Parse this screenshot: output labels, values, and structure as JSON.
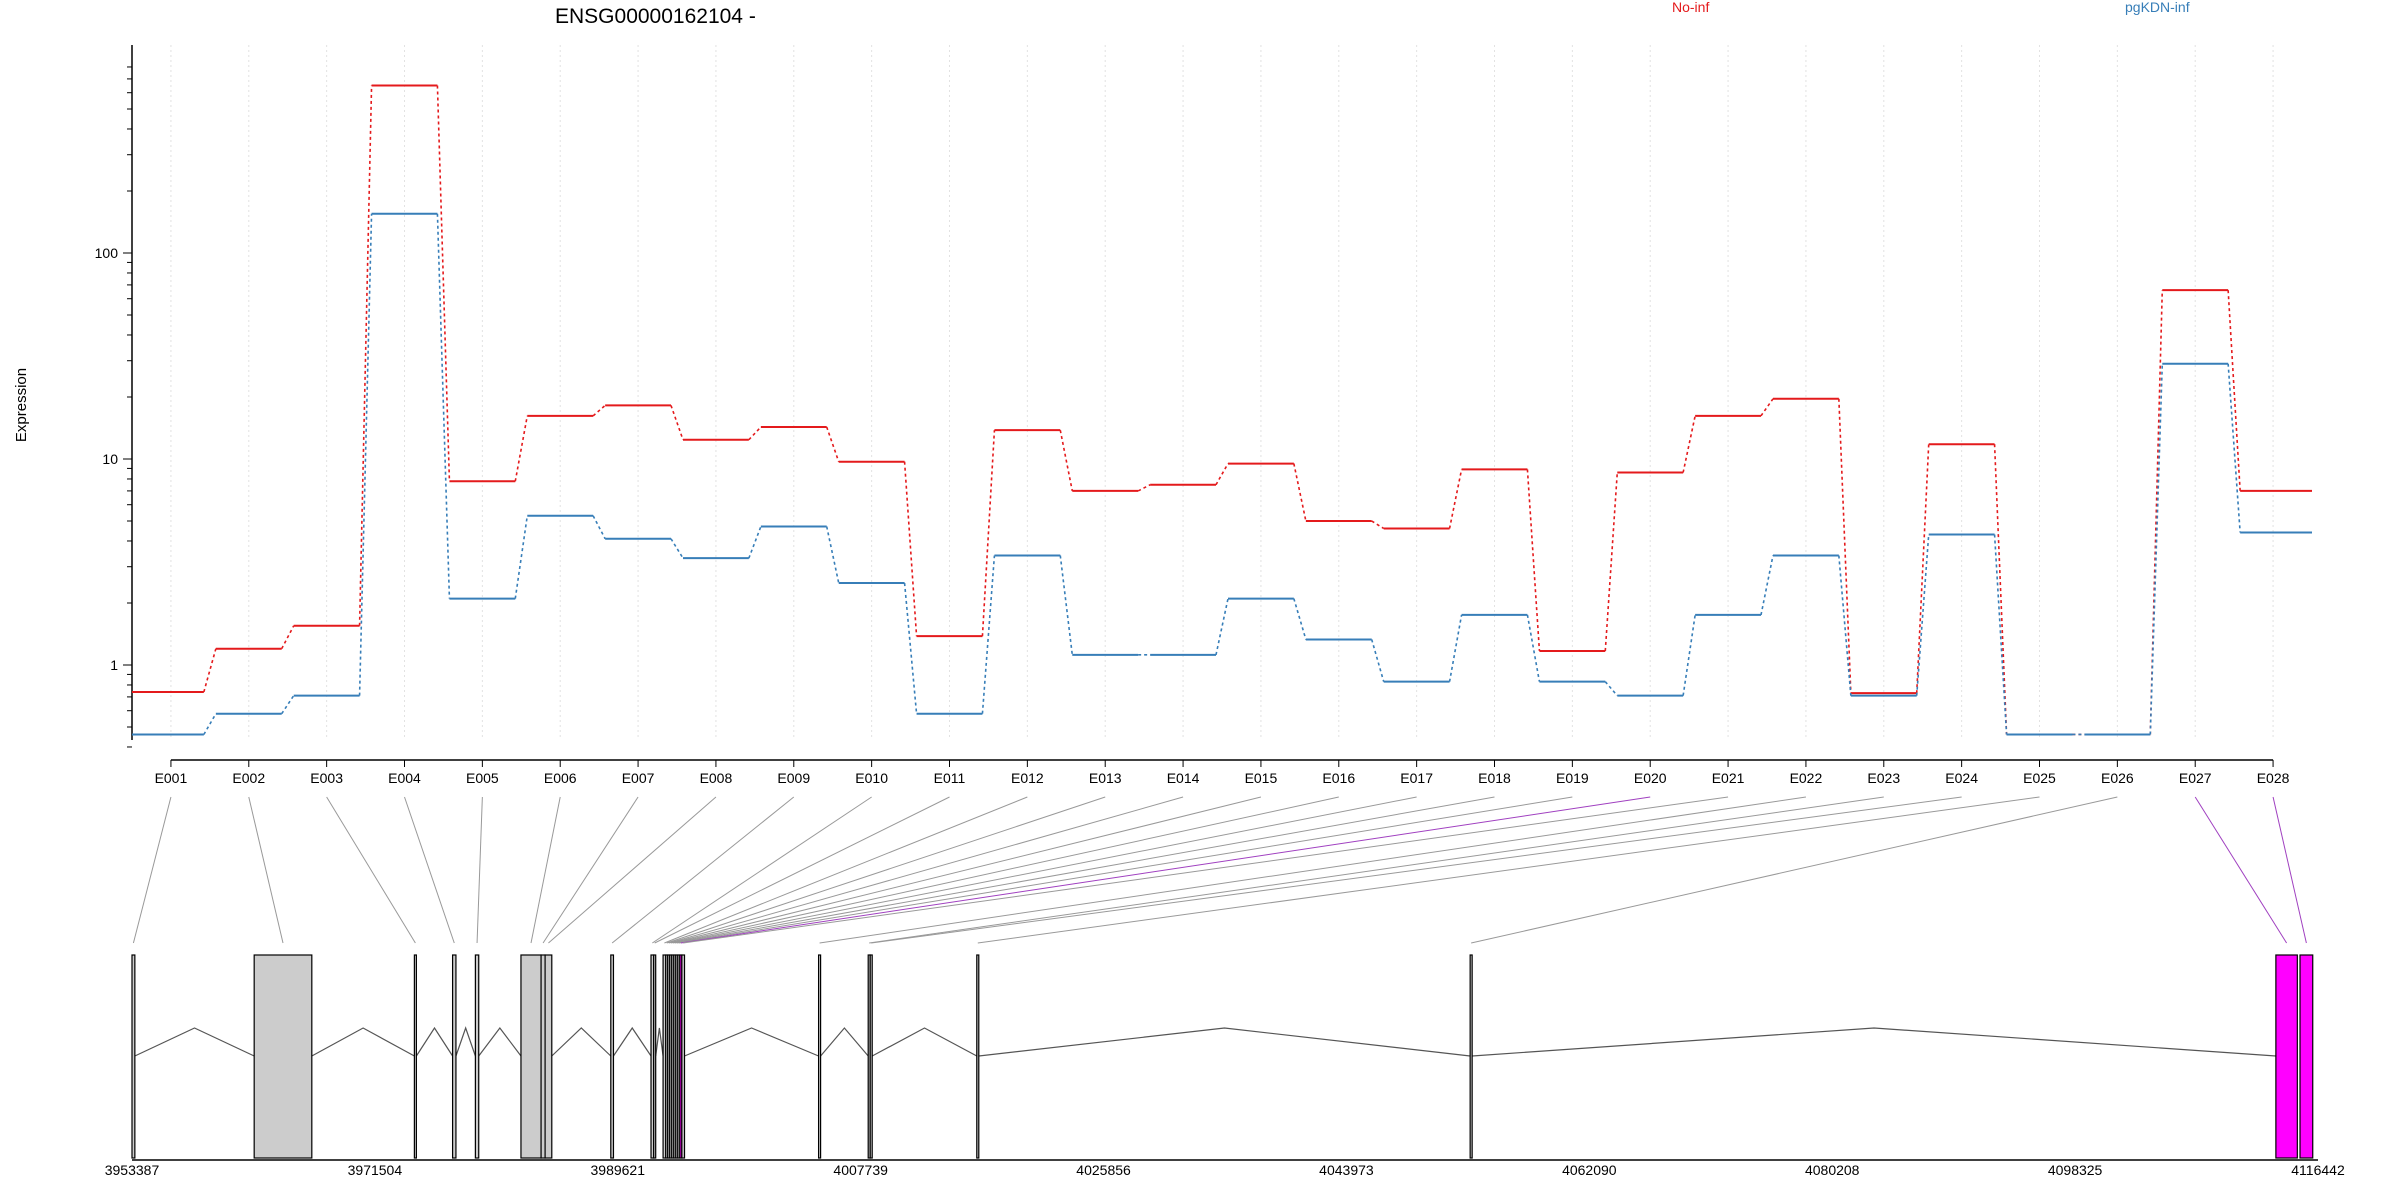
{
  "chart_data": {
    "type": "line",
    "title": "ENSG00000162104 -",
    "ylabel": "Expression",
    "xlabel": "",
    "y_scale": "log",
    "ylim": [
      0.4,
      800
    ],
    "y_ticks": [
      1,
      10,
      100
    ],
    "y_tick_labels": [
      "1",
      "10",
      "100"
    ],
    "grid": "vertical dotted lines at each exon",
    "legend_placement": "top",
    "categories": [
      "E001",
      "E002",
      "E003",
      "E004",
      "E005",
      "E006",
      "E007",
      "E008",
      "E009",
      "E010",
      "E011",
      "E012",
      "E013",
      "E014",
      "E015",
      "E016",
      "E017",
      "E018",
      "E019",
      "E020",
      "E021",
      "E022",
      "E023",
      "E024",
      "E025",
      "E026",
      "E027",
      "E028"
    ],
    "series": [
      {
        "name": "No-inf",
        "color": "#e41a1c",
        "values": [
          0.74,
          1.2,
          1.55,
          650,
          7.8,
          16.2,
          18.2,
          12.4,
          14.3,
          9.7,
          1.38,
          13.8,
          7.0,
          7.5,
          9.5,
          5.0,
          4.6,
          8.9,
          1.17,
          8.6,
          16.2,
          19.6,
          0.73,
          11.8,
          0.46,
          0.46,
          66,
          7.0
        ]
      },
      {
        "name": "pgKDN-inf",
        "color": "#377eb8",
        "values": [
          0.46,
          0.58,
          0.71,
          155,
          2.1,
          5.3,
          4.1,
          3.3,
          4.7,
          2.5,
          0.58,
          3.4,
          1.12,
          1.12,
          2.1,
          1.33,
          0.83,
          1.75,
          0.83,
          0.71,
          1.75,
          3.4,
          0.71,
          4.3,
          0.46,
          0.46,
          29,
          4.4
        ]
      }
    ],
    "genomic_axis": {
      "tick_labels": [
        "3953387",
        "3971504",
        "3989621",
        "4007739",
        "4025856",
        "4043973",
        "4062090",
        "4080208",
        "4098325",
        "4116442"
      ],
      "range": [
        3953387,
        4116442
      ]
    },
    "gene_model": {
      "exon_fill": "#cccccc",
      "highlight_fill": "#ff00ff",
      "highlight_exons": [
        "E020",
        "E027",
        "E028"
      ],
      "exons": [
        {
          "id": "E001",
          "start": 3953387,
          "end": 3953600
        },
        {
          "id": "E002",
          "start": 3962500,
          "end": 3966800
        },
        {
          "id": "E003",
          "start": 3974450,
          "end": 3974550
        },
        {
          "id": "E004",
          "start": 3977300,
          "end": 3977550
        },
        {
          "id": "E005",
          "start": 3979000,
          "end": 3979250
        },
        {
          "id": "E006",
          "start": 3982400,
          "end": 3983900
        },
        {
          "id": "E007",
          "start": 3983900,
          "end": 3984200
        },
        {
          "id": "E008",
          "start": 3984200,
          "end": 3984700
        },
        {
          "id": "E009",
          "start": 3989100,
          "end": 3989300
        },
        {
          "id": "E010",
          "start": 3992100,
          "end": 3992300
        },
        {
          "id": "E011",
          "start": 3992300,
          "end": 3992450
        },
        {
          "id": "E012",
          "start": 3993000,
          "end": 3993200
        },
        {
          "id": "E013",
          "start": 3993200,
          "end": 3993350
        },
        {
          "id": "E014",
          "start": 3993350,
          "end": 3993500
        },
        {
          "id": "E015",
          "start": 3993500,
          "end": 3993650
        },
        {
          "id": "E016",
          "start": 3993650,
          "end": 3993800
        },
        {
          "id": "E017",
          "start": 3993800,
          "end": 3993950
        },
        {
          "id": "E018",
          "start": 3993950,
          "end": 3994100
        },
        {
          "id": "E019",
          "start": 3994100,
          "end": 3994250
        },
        {
          "id": "E020",
          "start": 3994250,
          "end": 3994400
        },
        {
          "id": "E021",
          "start": 3994400,
          "end": 3994600
        },
        {
          "id": "E022",
          "start": 4004600,
          "end": 4004750
        },
        {
          "id": "E023",
          "start": 4008300,
          "end": 4008450
        },
        {
          "id": "E024",
          "start": 4008450,
          "end": 4008600
        },
        {
          "id": "E025",
          "start": 4016400,
          "end": 4016550
        },
        {
          "id": "E026",
          "start": 4053200,
          "end": 4053350
        },
        {
          "id": "E027",
          "start": 4113300,
          "end": 4114900
        },
        {
          "id": "E028",
          "start": 4115100,
          "end": 4116050
        }
      ]
    }
  }
}
